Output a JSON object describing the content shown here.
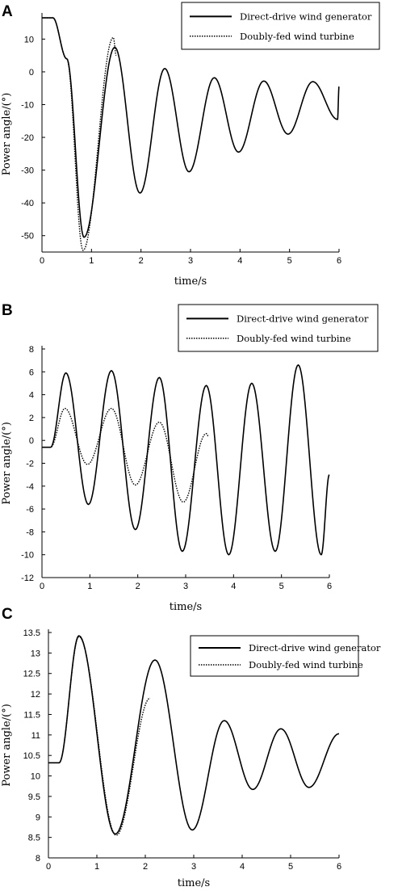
{
  "chart_data": [
    {
      "panel": "A",
      "type": "line",
      "xlabel": "time/s",
      "ylabel": "Power angle/(°)",
      "xlim": [
        0,
        6
      ],
      "ylim": [
        -55,
        17
      ],
      "xticks": [
        "0",
        "1",
        "2",
        "3",
        "4",
        "5",
        "6"
      ],
      "yticks": [
        "10",
        "0",
        "-10",
        "-20",
        "-30",
        "-40",
        "-50"
      ],
      "legend": [
        "Direct-drive wind generator",
        "Doubly-fed wind turbine"
      ],
      "legend_position": "top-right",
      "series": [
        {
          "name": "Direct-drive wind generator",
          "style": "solid",
          "x": [
            0,
            0.22,
            0.5,
            0.85,
            1.47,
            1.98,
            2.48,
            2.97,
            3.48,
            3.97,
            4.48,
            4.97,
            5.47,
            5.97,
            6.0
          ],
          "y": [
            16.5,
            16.5,
            4,
            -50.5,
            7.5,
            -37,
            1,
            -30.5,
            -1.8,
            -24.5,
            -2.8,
            -19,
            -3,
            -14.5,
            -4.5
          ]
        },
        {
          "name": "Doubly-fed wind turbine",
          "style": "dotted",
          "x": [
            0,
            0.22,
            0.5,
            0.83,
            1.44,
            1.5
          ],
          "y": [
            16.5,
            16.5,
            4,
            -54.5,
            10.5,
            5
          ]
        }
      ]
    },
    {
      "panel": "B",
      "type": "line",
      "xlabel": "time/s",
      "ylabel": "Power angle/(°)",
      "xlim": [
        0,
        6
      ],
      "ylim": [
        -12,
        8
      ],
      "xticks": [
        "0",
        "1",
        "2",
        "3",
        "4",
        "5",
        "6"
      ],
      "yticks": [
        "8",
        "6",
        "4",
        "2",
        "0",
        "-2",
        "-4",
        "-6",
        "-8",
        "-10",
        "-12"
      ],
      "legend": [
        "Direct-drive wind generator",
        "Doubly-fed wind turbine"
      ],
      "legend_position": "top-right",
      "series": [
        {
          "name": "Direct-drive wind generator",
          "style": "solid",
          "x": [
            0,
            0.18,
            0.5,
            0.97,
            1.45,
            1.95,
            2.45,
            2.93,
            3.43,
            3.9,
            4.38,
            4.87,
            5.35,
            5.83,
            6.0
          ],
          "y": [
            -0.6,
            -0.6,
            5.9,
            -5.6,
            6.1,
            -7.8,
            5.5,
            -9.7,
            4.8,
            -10,
            5,
            -9.7,
            6.6,
            -10,
            -3
          ]
        },
        {
          "name": "Doubly-fed wind turbine",
          "style": "dotted",
          "x": [
            0,
            0.18,
            0.48,
            0.95,
            1.45,
            1.95,
            2.45,
            2.95,
            3.43,
            3.47
          ],
          "y": [
            -0.6,
            -0.6,
            2.8,
            -2.1,
            2.8,
            -3.9,
            1.6,
            -5.4,
            0.6,
            0.4
          ]
        }
      ]
    },
    {
      "panel": "C",
      "type": "line",
      "xlabel": "time/s",
      "ylabel": "Power angle/(°)",
      "xlim": [
        0,
        6
      ],
      "ylim": [
        8,
        13.5
      ],
      "xticks": [
        "0",
        "1",
        "2",
        "3",
        "4",
        "5",
        "6"
      ],
      "yticks": [
        "13.5",
        "13",
        "12.5",
        "12",
        "11.5",
        "11",
        "10.5",
        "10",
        "9.5",
        "9",
        "8.5",
        "8"
      ],
      "legend": [
        "Direct-drive wind generator",
        "Doubly-fed wind turbine"
      ],
      "legend_position": "top-right",
      "series": [
        {
          "name": "Direct-drive wind generator",
          "style": "solid",
          "x": [
            0,
            0.22,
            0.63,
            1.38,
            2.2,
            2.97,
            3.63,
            4.22,
            4.8,
            5.38,
            6.0
          ],
          "y": [
            10.32,
            10.32,
            13.42,
            8.58,
            12.83,
            8.68,
            11.35,
            9.67,
            11.15,
            9.72,
            11.03
          ]
        },
        {
          "name": "Doubly-fed wind turbine",
          "style": "dotted",
          "x": [
            0,
            0.22,
            0.63,
            1.4,
            2.1
          ],
          "y": [
            10.32,
            10.32,
            13.4,
            8.55,
            11.9
          ]
        }
      ]
    }
  ]
}
